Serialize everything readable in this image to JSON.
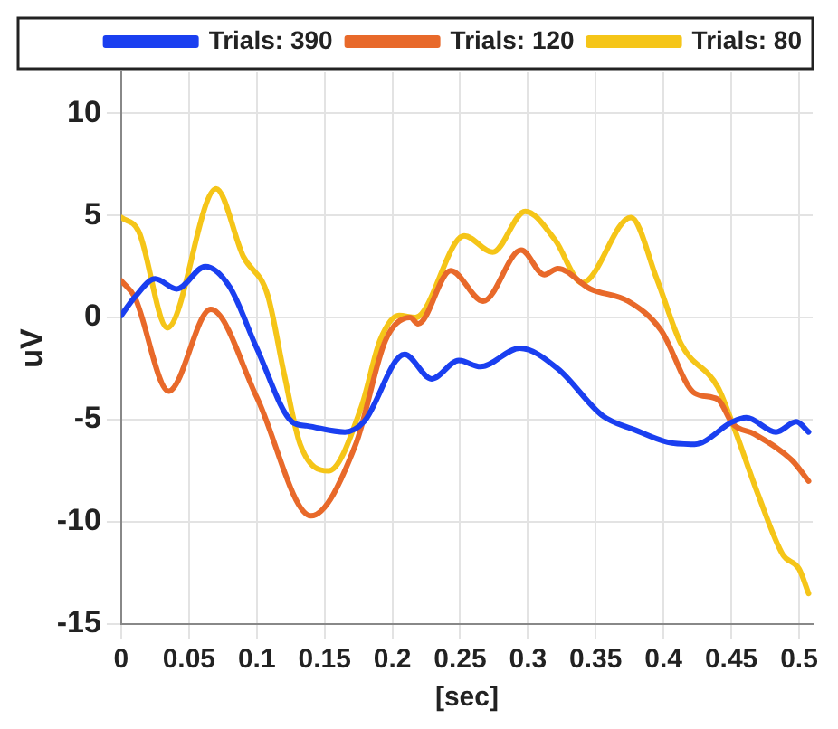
{
  "chart_data": {
    "type": "line",
    "xlabel": "[sec]",
    "ylabel": "uV",
    "xlim": [
      0,
      0.51
    ],
    "ylim": [
      -15,
      12
    ],
    "xticks": [
      0,
      0.05,
      0.1,
      0.15,
      0.2,
      0.25,
      0.3,
      0.35,
      0.4,
      0.45,
      0.5
    ],
    "yticks": [
      -15,
      -10,
      -5,
      0,
      5,
      10
    ],
    "grid": true,
    "legend": "top right",
    "marker": "none",
    "line_style": "solid",
    "series": [
      {
        "name": "Trials: 390",
        "color": "#1a3ff0",
        "x": [
          0,
          0.01,
          0.025,
          0.041,
          0.062,
          0.08,
          0.1,
          0.126,
          0.137,
          0.165,
          0.179,
          0.209,
          0.229,
          0.249,
          0.265,
          0.294,
          0.322,
          0.355,
          0.379,
          0.403,
          0.423,
          0.451,
          0.461,
          0.483,
          0.498,
          0.507
        ],
        "values": [
          0.1,
          1.0,
          1.9,
          1.4,
          2.5,
          1.5,
          -1.5,
          -5.1,
          -5.3,
          -5.6,
          -5.1,
          -1.8,
          -3.0,
          -2.1,
          -2.4,
          -1.5,
          -2.5,
          -4.8,
          -5.5,
          -6.1,
          -6.2,
          -5.1,
          -4.9,
          -5.6,
          -5.1,
          -5.6
        ]
      },
      {
        "name": "Trials: 120",
        "color": "#e8692a",
        "x": [
          0,
          0.01,
          0.035,
          0.066,
          0.1,
          0.14,
          0.173,
          0.195,
          0.213,
          0.219,
          0.243,
          0.267,
          0.295,
          0.312,
          0.322,
          0.346,
          0.374,
          0.398,
          0.423,
          0.44,
          0.451,
          0.467,
          0.495,
          0.507
        ],
        "values": [
          1.8,
          1.0,
          -3.6,
          0.4,
          -3.9,
          -9.7,
          -6.2,
          -1.1,
          0,
          -0.3,
          2.3,
          0.8,
          3.3,
          2.1,
          2.4,
          1.4,
          0.8,
          -0.6,
          -3.7,
          -4.0,
          -5.2,
          -5.7,
          -7.0,
          -8.0
        ]
      },
      {
        "name": "Trials: 80",
        "color": "#f5c518",
        "x": [
          0,
          0.013,
          0.034,
          0.07,
          0.09,
          0.108,
          0.12,
          0.132,
          0.153,
          0.177,
          0.191,
          0.205,
          0.217,
          0.253,
          0.274,
          0.298,
          0.32,
          0.34,
          0.376,
          0.395,
          0.413,
          0.44,
          0.451,
          0.47,
          0.488,
          0.5,
          0.507
        ],
        "values": [
          4.9,
          4.2,
          -0.5,
          6.3,
          3.0,
          1.1,
          -2.7,
          -6.2,
          -7.5,
          -4.4,
          -1.1,
          0.1,
          0,
          4.0,
          3.2,
          5.2,
          3.8,
          1.7,
          4.9,
          1.9,
          -1.3,
          -3.4,
          -5.2,
          -8.7,
          -11.6,
          -12.3,
          -13.5
        ]
      }
    ]
  }
}
